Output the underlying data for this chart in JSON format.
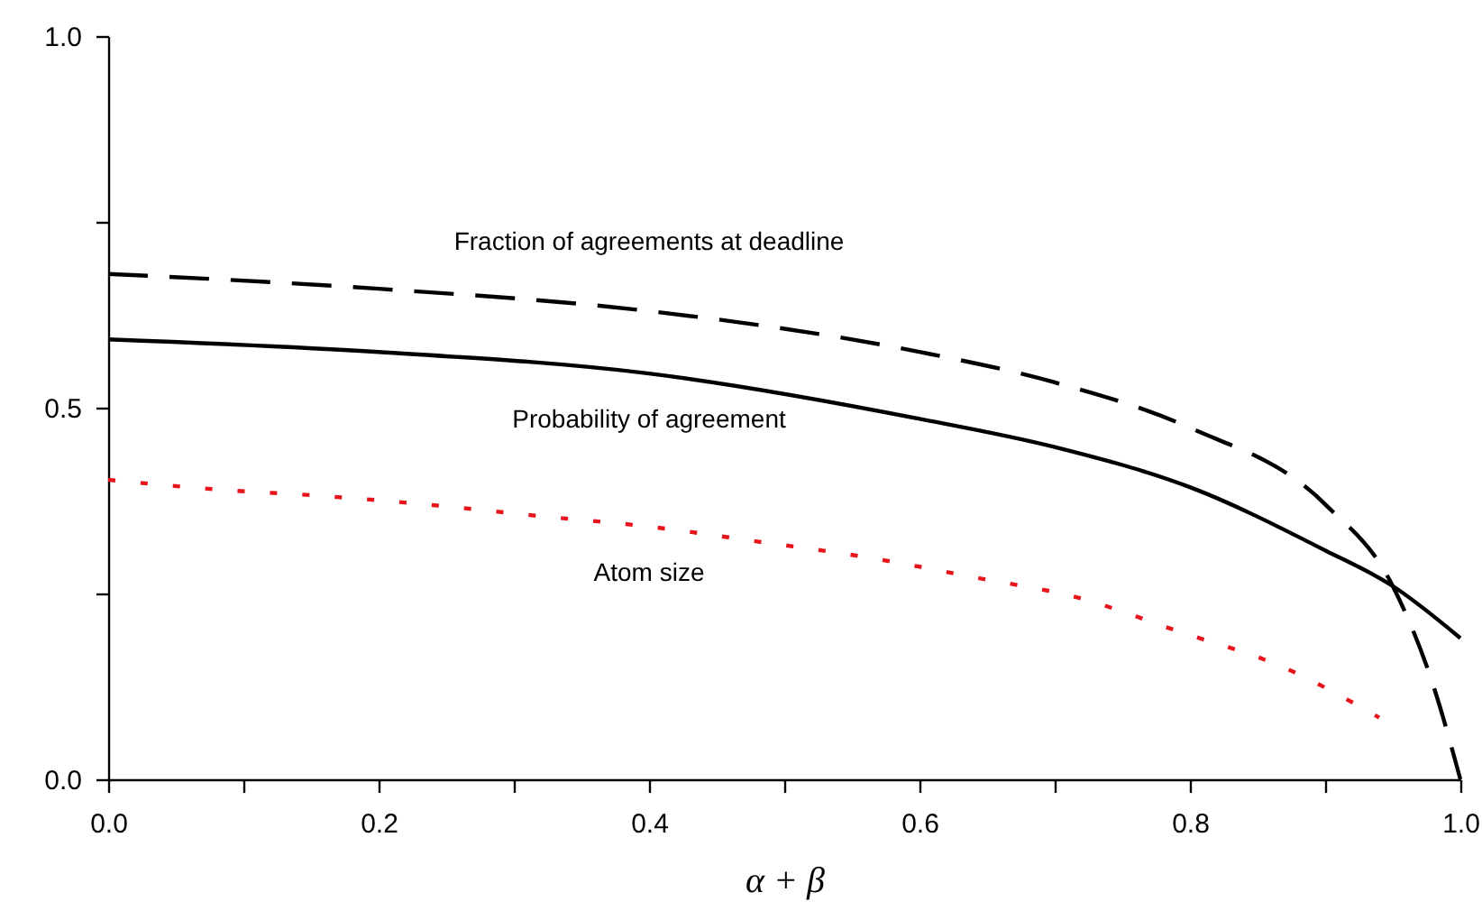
{
  "chart_data": {
    "type": "line",
    "xlabel": "α + β",
    "xlim": [
      0,
      1
    ],
    "ylim": [
      0,
      1
    ],
    "xticks": [
      {
        "value": 0,
        "label": "0.0"
      },
      {
        "value": 0.1,
        "label": null
      },
      0.2,
      {
        "value": 0.3,
        "label": null
      },
      0.4,
      {
        "value": 0.5,
        "label": null
      },
      0.6,
      {
        "value": 0.7,
        "label": null
      },
      0.8,
      {
        "value": 0.9,
        "label": null
      },
      {
        "value": 1,
        "label": "1.0"
      }
    ],
    "yticks": [
      {
        "value": 0,
        "label": "0.0"
      },
      {
        "value": 0.25,
        "label": null
      },
      0.5,
      {
        "value": 0.75,
        "label": null
      },
      {
        "value": 1,
        "label": "1.0"
      }
    ],
    "grid": false,
    "series": [
      {
        "color": "#000000",
        "line_style": "dashed",
        "x": [
          0,
          0.2,
          0.4,
          0.6,
          0.7,
          0.8,
          0.9,
          0.95,
          0.98,
          1.0
        ],
        "values": [
          0.68,
          0.66,
          0.63,
          0.575,
          0.534,
          0.473,
          0.37,
          0.26,
          0.126,
          0.0
        ]
      },
      {
        "color": "#000000",
        "line_style": "solid",
        "x": [
          0,
          0.2,
          0.4,
          0.6,
          0.7,
          0.8,
          0.9,
          0.95,
          1.0
        ],
        "values": [
          0.592,
          0.575,
          0.546,
          0.485,
          0.447,
          0.393,
          0.308,
          0.26,
          0.19
        ]
      },
      {
        "color": "#e8141c",
        "line_style": "dotted",
        "x": [
          0,
          0.08,
          0.16,
          0.24,
          0.32,
          0.4,
          0.48,
          0.56,
          0.64,
          0.72,
          0.79,
          0.87,
          0.94
        ],
        "values": [
          0.403,
          0.39,
          0.381,
          0.369,
          0.354,
          0.34,
          0.32,
          0.299,
          0.272,
          0.243,
          0.2,
          0.15,
          0.083
        ]
      }
    ],
    "annotations": [
      "Fraction of agreements at deadline",
      "Probability of agreement",
      "Atom size"
    ]
  }
}
